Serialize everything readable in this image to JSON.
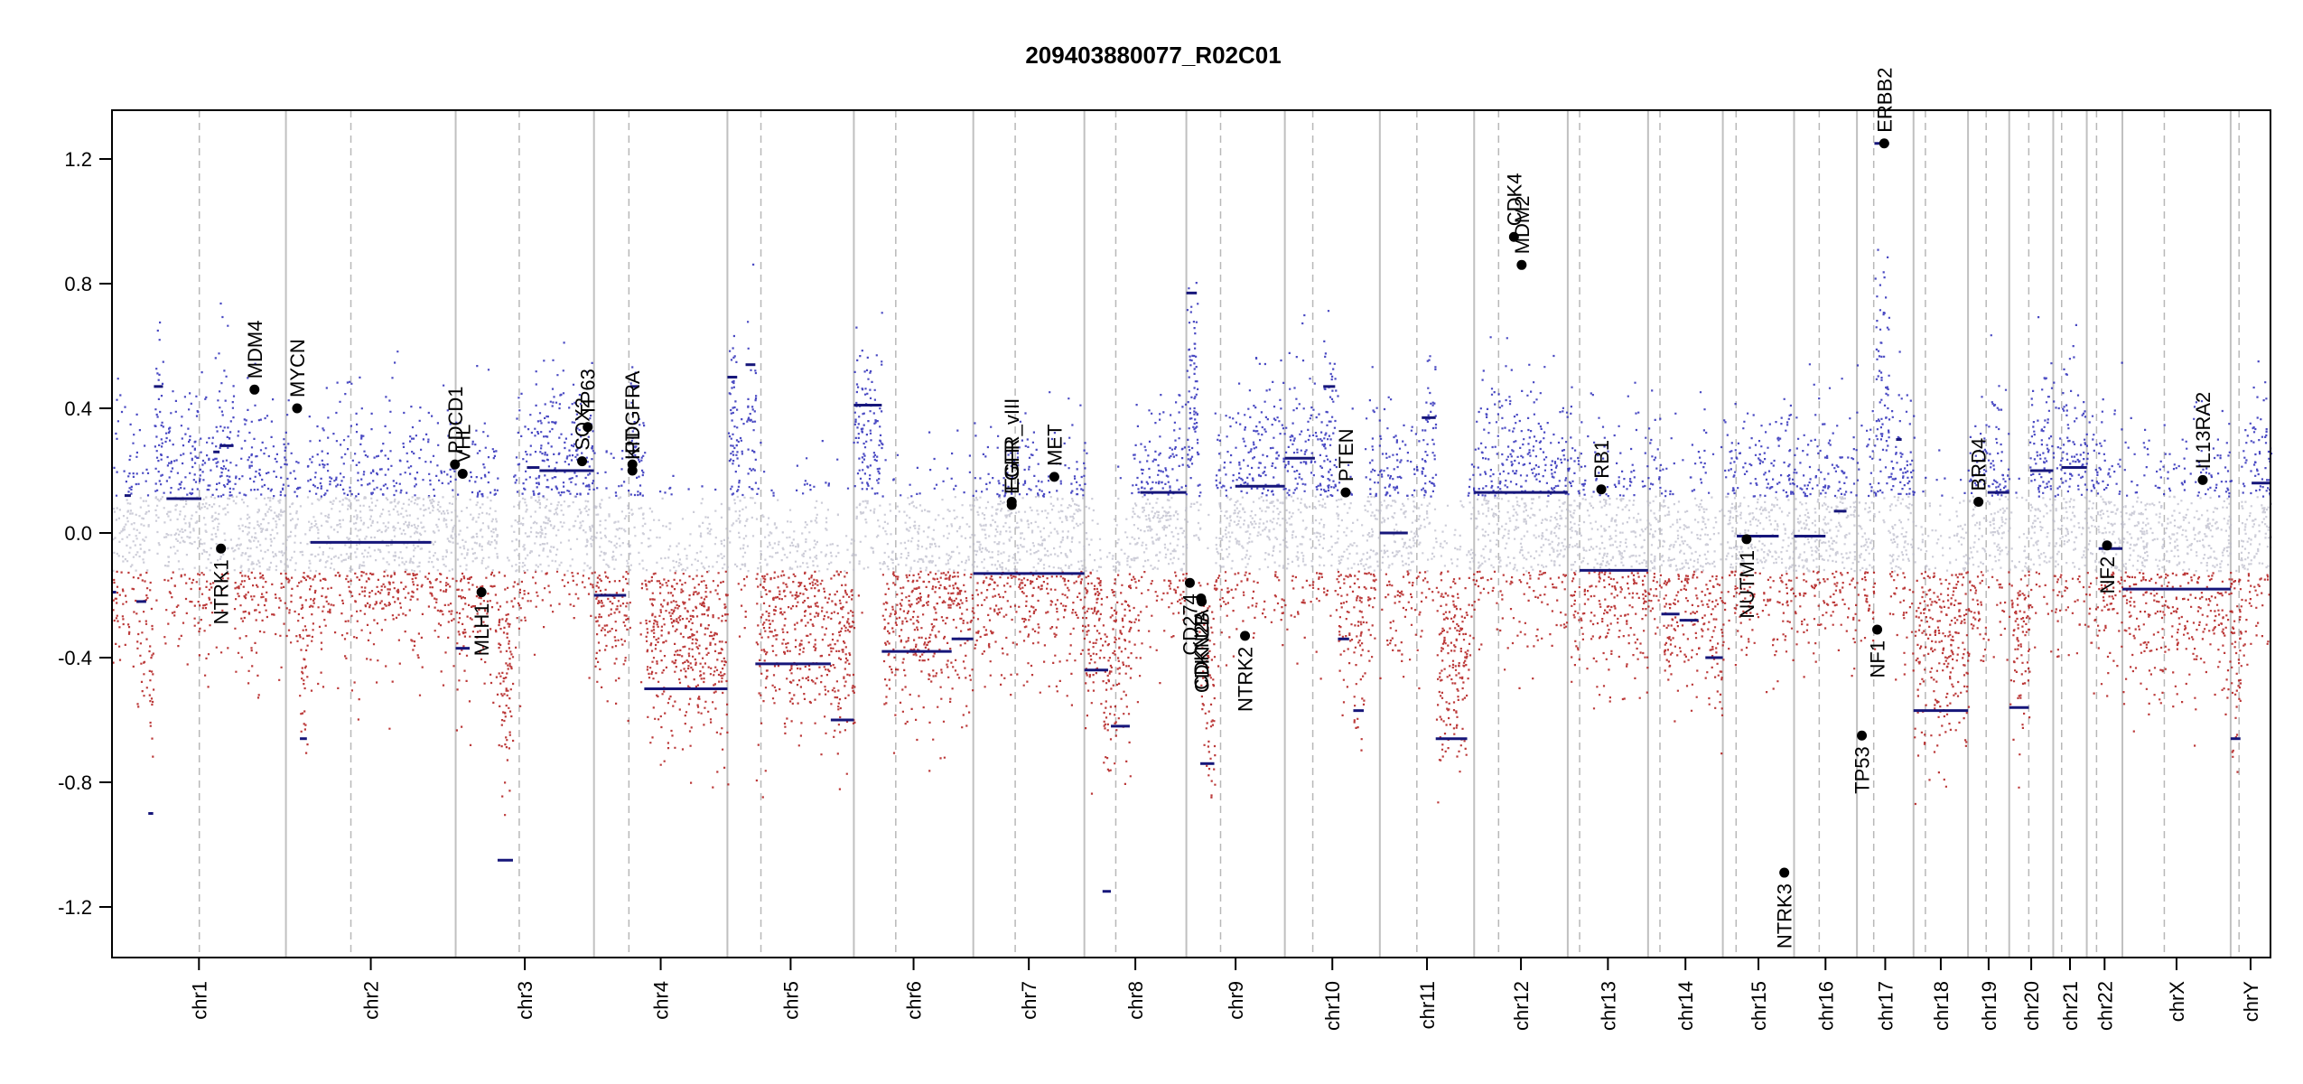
{
  "chart_data": {
    "type": "scatter",
    "title": "209403880077_R02C01",
    "xlabel": "",
    "ylabel": "",
    "ylim": [
      -1.35,
      1.35
    ],
    "y_ticks": [
      "1.2",
      "0.8",
      "0.4",
      "0.0",
      "-0.4",
      "-0.8",
      "-1.2"
    ],
    "y_tick_values": [
      1.2,
      0.8,
      0.4,
      0.0,
      -0.4,
      -0.8,
      -1.2
    ],
    "grid": false,
    "colors": {
      "gain": "#2a2ab8",
      "loss": "#b01818",
      "neutral": "#b8b8c8",
      "segment": "#16167a",
      "chrom_boundary": "#c0c0c0",
      "centromere": "#b8b8b8",
      "gene_marker": "#000000"
    },
    "chromosomes": [
      {
        "name": "chr1",
        "size": 249
      },
      {
        "name": "chr2",
        "size": 243
      },
      {
        "name": "chr3",
        "size": 198
      },
      {
        "name": "chr4",
        "size": 191
      },
      {
        "name": "chr5",
        "size": 181
      },
      {
        "name": "chr6",
        "size": 171
      },
      {
        "name": "chr7",
        "size": 159
      },
      {
        "name": "chr8",
        "size": 146
      },
      {
        "name": "chr9",
        "size": 141
      },
      {
        "name": "chr10",
        "size": 136
      },
      {
        "name": "chr11",
        "size": 135
      },
      {
        "name": "chr12",
        "size": 134
      },
      {
        "name": "chr13",
        "size": 115
      },
      {
        "name": "chr14",
        "size": 107
      },
      {
        "name": "chr15",
        "size": 102
      },
      {
        "name": "chr16",
        "size": 90
      },
      {
        "name": "chr17",
        "size": 81
      },
      {
        "name": "chr18",
        "size": 78
      },
      {
        "name": "chr19",
        "size": 59
      },
      {
        "name": "chr20",
        "size": 63
      },
      {
        "name": "chr21",
        "size": 48
      },
      {
        "name": "chr22",
        "size": 51
      },
      {
        "name": "chrX",
        "size": 155
      },
      {
        "name": "chrY",
        "size": 57
      }
    ],
    "centromeres": [
      125,
      93,
      91,
      50,
      48,
      60,
      60,
      45,
      49,
      40,
      53,
      35,
      17,
      17,
      19,
      36,
      24,
      17,
      26,
      28,
      12,
      14,
      60,
      12
    ],
    "segments": [
      {
        "chr": "chr1",
        "start": 0,
        "end": 6,
        "value": -0.19
      },
      {
        "chr": "chr1",
        "start": 18,
        "end": 27,
        "value": 0.12
      },
      {
        "chr": "chr1",
        "start": 35,
        "end": 49,
        "value": -0.22
      },
      {
        "chr": "chr1",
        "start": 52,
        "end": 59,
        "value": -0.9
      },
      {
        "chr": "chr1",
        "start": 60,
        "end": 73,
        "value": 0.47
      },
      {
        "chr": "chr1",
        "start": 78,
        "end": 128,
        "value": 0.11
      },
      {
        "chr": "chr1",
        "start": 145,
        "end": 154,
        "value": 0.26
      },
      {
        "chr": "chr1",
        "start": 154,
        "end": 174,
        "value": 0.28
      },
      {
        "chr": "chr2",
        "start": 20,
        "end": 30,
        "value": -0.66
      },
      {
        "chr": "chr2",
        "start": 35,
        "end": 208,
        "value": -0.03
      },
      {
        "chr": "chr3",
        "start": 0,
        "end": 20,
        "value": -0.37
      },
      {
        "chr": "chr3",
        "start": 60,
        "end": 82,
        "value": -1.05
      },
      {
        "chr": "chr3",
        "start": 102,
        "end": 120,
        "value": 0.21
      },
      {
        "chr": "chr3",
        "start": 120,
        "end": 198,
        "value": 0.2
      },
      {
        "chr": "chr4",
        "start": 0,
        "end": 46,
        "value": -0.2
      },
      {
        "chr": "chr4",
        "start": 52,
        "end": 64,
        "value": 0.47
      },
      {
        "chr": "chr4",
        "start": 72,
        "end": 191,
        "value": -0.5
      },
      {
        "chr": "chr5",
        "start": 0,
        "end": 14,
        "value": 0.5
      },
      {
        "chr": "chr5",
        "start": 26,
        "end": 40,
        "value": 0.54
      },
      {
        "chr": "chr5",
        "start": 40,
        "end": 148,
        "value": -0.42
      },
      {
        "chr": "chr5",
        "start": 148,
        "end": 181,
        "value": -0.6
      },
      {
        "chr": "chr6",
        "start": 0,
        "end": 40,
        "value": 0.41
      },
      {
        "chr": "chr6",
        "start": 40,
        "end": 140,
        "value": -0.38
      },
      {
        "chr": "chr6",
        "start": 140,
        "end": 171,
        "value": -0.34
      },
      {
        "chr": "chr7",
        "start": 0,
        "end": 159,
        "value": -0.13
      },
      {
        "chr": "chr8",
        "start": 0,
        "end": 34,
        "value": -0.44
      },
      {
        "chr": "chr8",
        "start": 38,
        "end": 65,
        "value": -0.62
      },
      {
        "chr": "chr8",
        "start": 26,
        "end": 38,
        "value": -1.15
      },
      {
        "chr": "chr8",
        "start": 80,
        "end": 146,
        "value": 0.13
      },
      {
        "chr": "chr9",
        "start": 0,
        "end": 15,
        "value": 0.77
      },
      {
        "chr": "chr9",
        "start": 20,
        "end": 40,
        "value": -0.74
      },
      {
        "chr": "chr9",
        "start": 70,
        "end": 141,
        "value": 0.15
      },
      {
        "chr": "chr10",
        "start": 0,
        "end": 43,
        "value": 0.24
      },
      {
        "chr": "chr10",
        "start": 55,
        "end": 72,
        "value": 0.47
      },
      {
        "chr": "chr10",
        "start": 76,
        "end": 92,
        "value": -0.34
      },
      {
        "chr": "chr10",
        "start": 98,
        "end": 113,
        "value": -0.57
      },
      {
        "chr": "chr11",
        "start": 0,
        "end": 40,
        "value": 0.0
      },
      {
        "chr": "chr11",
        "start": 60,
        "end": 80,
        "value": 0.37
      },
      {
        "chr": "chr11",
        "start": 80,
        "end": 125,
        "value": -0.66
      },
      {
        "chr": "chr12",
        "start": 0,
        "end": 134,
        "value": 0.13
      },
      {
        "chr": "chr13",
        "start": 17,
        "end": 115,
        "value": -0.12
      },
      {
        "chr": "chr14",
        "start": 19,
        "end": 45,
        "value": -0.26
      },
      {
        "chr": "chr14",
        "start": 45,
        "end": 72,
        "value": -0.28
      },
      {
        "chr": "chr14",
        "start": 82,
        "end": 107,
        "value": -0.4
      },
      {
        "chr": "chr15",
        "start": 20,
        "end": 80,
        "value": -0.01
      },
      {
        "chr": "chr16",
        "start": 0,
        "end": 45,
        "value": -0.01
      },
      {
        "chr": "chr16",
        "start": 57,
        "end": 75,
        "value": 0.07
      },
      {
        "chr": "chr17",
        "start": 25,
        "end": 46,
        "value": 1.25
      },
      {
        "chr": "chr17",
        "start": 56,
        "end": 64,
        "value": 0.3
      },
      {
        "chr": "chr18",
        "start": 0,
        "end": 78,
        "value": -0.57
      },
      {
        "chr": "chr19",
        "start": 28,
        "end": 59,
        "value": 0.13
      },
      {
        "chr": "chr20",
        "start": 0,
        "end": 28,
        "value": -0.56
      },
      {
        "chr": "chr20",
        "start": 30,
        "end": 63,
        "value": 0.2
      },
      {
        "chr": "chr21",
        "start": 12,
        "end": 48,
        "value": 0.21
      },
      {
        "chr": "chr22",
        "start": 17,
        "end": 51,
        "value": -0.05
      },
      {
        "chr": "chrX",
        "start": 0,
        "end": 155,
        "value": -0.18
      },
      {
        "chr": "chrY",
        "start": 0,
        "end": 14,
        "value": -0.66
      },
      {
        "chr": "chrY",
        "start": 30,
        "end": 57,
        "value": 0.16
      }
    ],
    "genes": [
      {
        "name": "NTRK1",
        "chr": "chr1",
        "pos": 156,
        "value": -0.05
      },
      {
        "name": "MDM4",
        "chr": "chr1",
        "pos": 204,
        "value": 0.46
      },
      {
        "name": "MYCN",
        "chr": "chr2",
        "pos": 16,
        "value": 0.4
      },
      {
        "name": "PDCD1",
        "chr": "chr2",
        "pos": 242,
        "value": 0.22
      },
      {
        "name": "VHL",
        "chr": "chr3",
        "pos": 10,
        "value": 0.19
      },
      {
        "name": "MLH1",
        "chr": "chr3",
        "pos": 37,
        "value": -0.19
      },
      {
        "name": "SOX2",
        "chr": "chr3",
        "pos": 181,
        "value": 0.23
      },
      {
        "name": "TP63",
        "chr": "chr3",
        "pos": 189,
        "value": 0.34
      },
      {
        "name": "PDGFRA",
        "chr": "chr4",
        "pos": 55,
        "value": 0.22
      },
      {
        "name": "KIT",
        "chr": "chr4",
        "pos": 55,
        "value": 0.2
      },
      {
        "name": "EGFR",
        "chr": "chr7",
        "pos": 55,
        "value": 0.09
      },
      {
        "name": "EGFR_vIII",
        "chr": "chr7",
        "pos": 55,
        "value": 0.1
      },
      {
        "name": "MET",
        "chr": "chr7",
        "pos": 116,
        "value": 0.18
      },
      {
        "name": "CD274",
        "chr": "chr9",
        "pos": 5,
        "value": -0.16
      },
      {
        "name": "CDKN2A",
        "chr": "chr9",
        "pos": 21,
        "value": -0.21
      },
      {
        "name": "CDKN2B",
        "chr": "chr9",
        "pos": 22,
        "value": -0.22
      },
      {
        "name": "NTRK2",
        "chr": "chr9",
        "pos": 84,
        "value": -0.33
      },
      {
        "name": "PTEN",
        "chr": "chr10",
        "pos": 87,
        "value": 0.13
      },
      {
        "name": "CDK4",
        "chr": "chr12",
        "pos": 57,
        "value": 0.95
      },
      {
        "name": "MDM2",
        "chr": "chr12",
        "pos": 68,
        "value": 0.86
      },
      {
        "name": "RB1",
        "chr": "chr13",
        "pos": 48,
        "value": 0.14
      },
      {
        "name": "NUTM1",
        "chr": "chr15",
        "pos": 34,
        "value": -0.02
      },
      {
        "name": "NTRK3",
        "chr": "chr15",
        "pos": 88,
        "value": -1.09
      },
      {
        "name": "TP53",
        "chr": "chr17",
        "pos": 7,
        "value": -0.65
      },
      {
        "name": "NF1",
        "chr": "chr17",
        "pos": 29,
        "value": -0.31
      },
      {
        "name": "ERBB2",
        "chr": "chr17",
        "pos": 39,
        "value": 1.25
      },
      {
        "name": "BRD4",
        "chr": "chr19",
        "pos": 15,
        "value": 0.1
      },
      {
        "name": "NF2",
        "chr": "chr22",
        "pos": 29,
        "value": -0.04
      },
      {
        "name": "IL13RA2",
        "chr": "chrX",
        "pos": 115,
        "value": 0.17
      }
    ]
  }
}
